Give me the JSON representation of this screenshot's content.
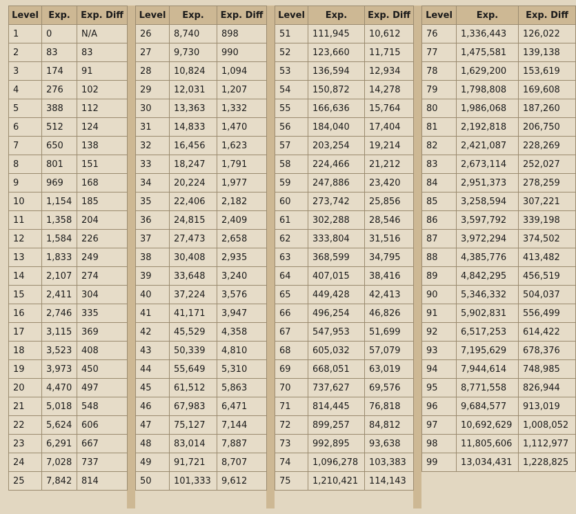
{
  "headers": [
    "Level",
    "Exp.",
    "Exp. Diff"
  ],
  "panels": [
    {
      "rows": [
        [
          "1",
          "0",
          "N/A"
        ],
        [
          "2",
          "83",
          "83"
        ],
        [
          "3",
          "174",
          "91"
        ],
        [
          "4",
          "276",
          "102"
        ],
        [
          "5",
          "388",
          "112"
        ],
        [
          "6",
          "512",
          "124"
        ],
        [
          "7",
          "650",
          "138"
        ],
        [
          "8",
          "801",
          "151"
        ],
        [
          "9",
          "969",
          "168"
        ],
        [
          "10",
          "1,154",
          "185"
        ],
        [
          "11",
          "1,358",
          "204"
        ],
        [
          "12",
          "1,584",
          "226"
        ],
        [
          "13",
          "1,833",
          "249"
        ],
        [
          "14",
          "2,107",
          "274"
        ],
        [
          "15",
          "2,411",
          "304"
        ],
        [
          "16",
          "2,746",
          "335"
        ],
        [
          "17",
          "3,115",
          "369"
        ],
        [
          "18",
          "3,523",
          "408"
        ],
        [
          "19",
          "3,973",
          "450"
        ],
        [
          "20",
          "4,470",
          "497"
        ],
        [
          "21",
          "5,018",
          "548"
        ],
        [
          "22",
          "5,624",
          "606"
        ],
        [
          "23",
          "6,291",
          "667"
        ],
        [
          "24",
          "7,028",
          "737"
        ],
        [
          "25",
          "7,842",
          "814"
        ]
      ]
    },
    {
      "rows": [
        [
          "26",
          "8,740",
          "898"
        ],
        [
          "27",
          "9,730",
          "990"
        ],
        [
          "28",
          "10,824",
          "1,094"
        ],
        [
          "29",
          "12,031",
          "1,207"
        ],
        [
          "30",
          "13,363",
          "1,332"
        ],
        [
          "31",
          "14,833",
          "1,470"
        ],
        [
          "32",
          "16,456",
          "1,623"
        ],
        [
          "33",
          "18,247",
          "1,791"
        ],
        [
          "34",
          "20,224",
          "1,977"
        ],
        [
          "35",
          "22,406",
          "2,182"
        ],
        [
          "36",
          "24,815",
          "2,409"
        ],
        [
          "37",
          "27,473",
          "2,658"
        ],
        [
          "38",
          "30,408",
          "2,935"
        ],
        [
          "39",
          "33,648",
          "3,240"
        ],
        [
          "40",
          "37,224",
          "3,576"
        ],
        [
          "41",
          "41,171",
          "3,947"
        ],
        [
          "42",
          "45,529",
          "4,358"
        ],
        [
          "43",
          "50,339",
          "4,810"
        ],
        [
          "44",
          "55,649",
          "5,310"
        ],
        [
          "45",
          "61,512",
          "5,863"
        ],
        [
          "46",
          "67,983",
          "6,471"
        ],
        [
          "47",
          "75,127",
          "7,144"
        ],
        [
          "48",
          "83,014",
          "7,887"
        ],
        [
          "49",
          "91,721",
          "8,707"
        ],
        [
          "50",
          "101,333",
          "9,612"
        ]
      ]
    },
    {
      "rows": [
        [
          "51",
          "111,945",
          "10,612"
        ],
        [
          "52",
          "123,660",
          "11,715"
        ],
        [
          "53",
          "136,594",
          "12,934"
        ],
        [
          "54",
          "150,872",
          "14,278"
        ],
        [
          "55",
          "166,636",
          "15,764"
        ],
        [
          "56",
          "184,040",
          "17,404"
        ],
        [
          "57",
          "203,254",
          "19,214"
        ],
        [
          "58",
          "224,466",
          "21,212"
        ],
        [
          "59",
          "247,886",
          "23,420"
        ],
        [
          "60",
          "273,742",
          "25,856"
        ],
        [
          "61",
          "302,288",
          "28,546"
        ],
        [
          "62",
          "333,804",
          "31,516"
        ],
        [
          "63",
          "368,599",
          "34,795"
        ],
        [
          "64",
          "407,015",
          "38,416"
        ],
        [
          "65",
          "449,428",
          "42,413"
        ],
        [
          "66",
          "496,254",
          "46,826"
        ],
        [
          "67",
          "547,953",
          "51,699"
        ],
        [
          "68",
          "605,032",
          "57,079"
        ],
        [
          "69",
          "668,051",
          "63,019"
        ],
        [
          "70",
          "737,627",
          "69,576"
        ],
        [
          "71",
          "814,445",
          "76,818"
        ],
        [
          "72",
          "899,257",
          "84,812"
        ],
        [
          "73",
          "992,895",
          "93,638"
        ],
        [
          "74",
          "1,096,278",
          "103,383"
        ],
        [
          "75",
          "1,210,421",
          "114,143"
        ]
      ]
    },
    {
      "rows": [
        [
          "76",
          "1,336,443",
          "126,022"
        ],
        [
          "77",
          "1,475,581",
          "139,138"
        ],
        [
          "78",
          "1,629,200",
          "153,619"
        ],
        [
          "79",
          "1,798,808",
          "169,608"
        ],
        [
          "80",
          "1,986,068",
          "187,260"
        ],
        [
          "81",
          "2,192,818",
          "206,750"
        ],
        [
          "82",
          "2,421,087",
          "228,269"
        ],
        [
          "83",
          "2,673,114",
          "252,027"
        ],
        [
          "84",
          "2,951,373",
          "278,259"
        ],
        [
          "85",
          "3,258,594",
          "307,221"
        ],
        [
          "86",
          "3,597,792",
          "339,198"
        ],
        [
          "87",
          "3,972,294",
          "374,502"
        ],
        [
          "88",
          "4,385,776",
          "413,482"
        ],
        [
          "89",
          "4,842,295",
          "456,519"
        ],
        [
          "90",
          "5,346,332",
          "504,037"
        ],
        [
          "91",
          "5,902,831",
          "556,499"
        ],
        [
          "92",
          "6,517,253",
          "614,422"
        ],
        [
          "93",
          "7,195,629",
          "678,376"
        ],
        [
          "94",
          "7,944,614",
          "748,985"
        ],
        [
          "95",
          "8,771,558",
          "826,944"
        ],
        [
          "96",
          "9,684,577",
          "913,019"
        ],
        [
          "97",
          "10,692,629",
          "1,008,052"
        ],
        [
          "98",
          "11,805,606",
          "1,112,977"
        ],
        [
          "99",
          "13,034,431",
          "1,228,825"
        ]
      ]
    }
  ]
}
